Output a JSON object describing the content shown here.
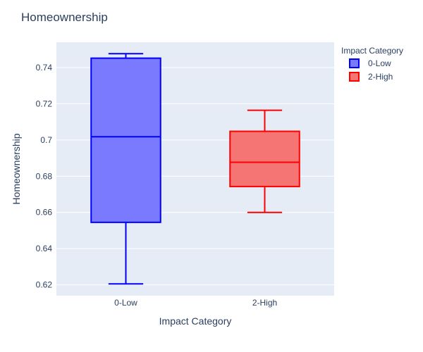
{
  "chart_data": {
    "type": "box",
    "title": "Homeownership",
    "xlabel": "Impact Category",
    "ylabel": "Homeownership",
    "categories": [
      "0-Low",
      "2-High"
    ],
    "ylim": [
      0.614,
      0.754
    ],
    "yticks": [
      0.62,
      0.64,
      0.66,
      0.68,
      0.7,
      0.72,
      0.74
    ],
    "ytick_labels": [
      "0.62",
      "0.64",
      "0.66",
      "0.68",
      "0.7",
      "0.72",
      "0.74"
    ],
    "grid": true,
    "legend": {
      "title": "Impact Category",
      "placement": "top-right"
    },
    "series": [
      {
        "name": "0-Low",
        "category": "0-Low",
        "min": 0.6205,
        "q1": 0.6545,
        "median": 0.7018,
        "q3": 0.7452,
        "max": 0.7477,
        "line_color": "#0000ff",
        "fill_color": "#7a7aff"
      },
      {
        "name": "2-High",
        "category": "2-High",
        "min": 0.66,
        "q1": 0.6743,
        "median": 0.6877,
        "q3": 0.7048,
        "max": 0.7164,
        "line_color": "#ff0000",
        "fill_color": "#f57474"
      }
    ],
    "colors": {
      "plot_bg": "#e5ecf6",
      "grid": "#ffffff",
      "text": "#2a3f5f"
    }
  }
}
